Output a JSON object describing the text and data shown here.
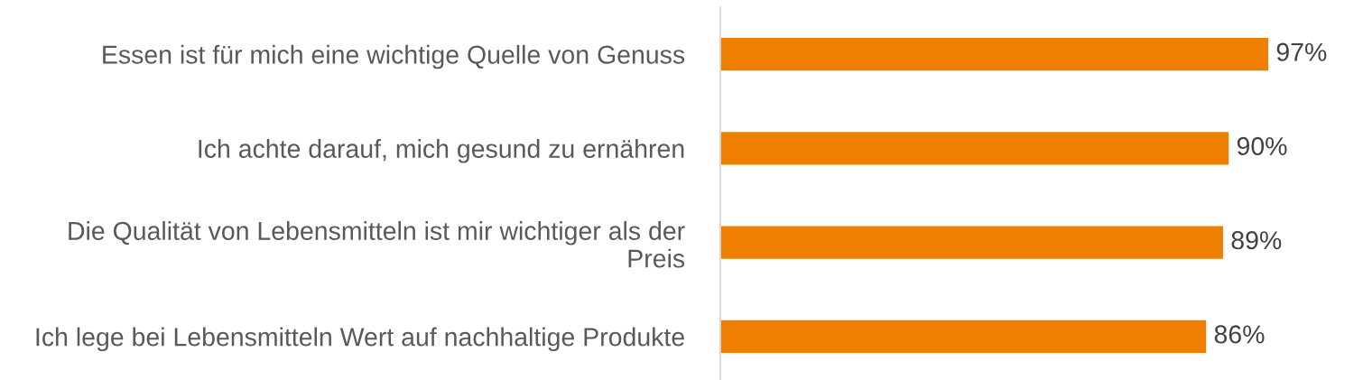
{
  "chart_data": {
    "type": "bar",
    "orientation": "horizontal",
    "categories": [
      "Essen ist für mich eine wichtige Quelle von Genuss",
      "Ich achte darauf, mich gesund zu ernähren",
      "Die Qualität von Lebensmitteln ist mir wichtiger als der Preis",
      "Ich lege bei Lebensmitteln Wert auf nachhaltige Produkte"
    ],
    "values": [
      97,
      90,
      89,
      86
    ],
    "value_labels": [
      "97%",
      "90%",
      "89%",
      "86%"
    ],
    "color": "#ee7f00",
    "tick_labels": "y"
  }
}
